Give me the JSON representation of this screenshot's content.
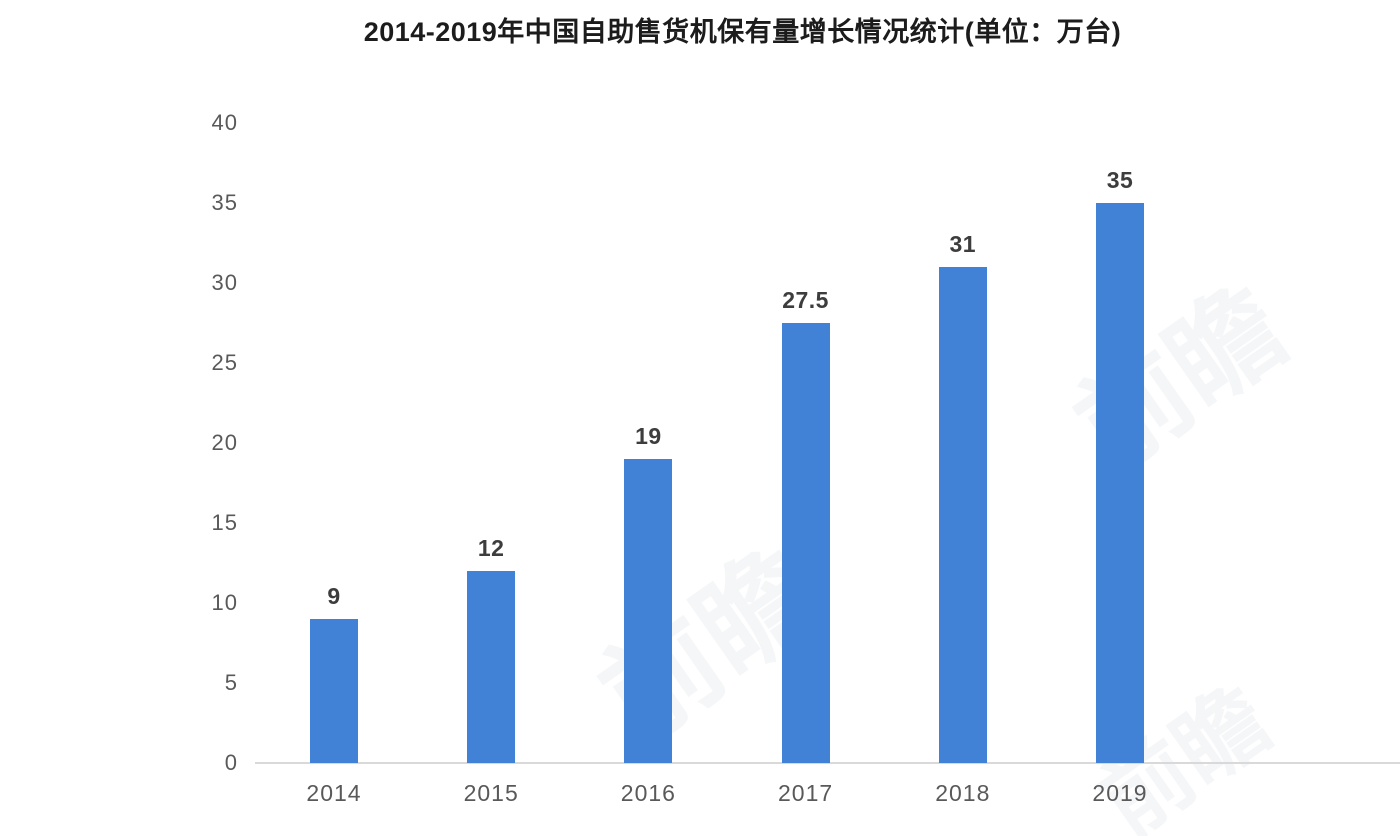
{
  "chart_data": {
    "type": "bar",
    "title": "2014-2019年中国自助售货机保有量增长情况统计(单位：万台)",
    "categories": [
      "2014",
      "2015",
      "2016",
      "2017",
      "2018",
      "2019"
    ],
    "values": [
      9,
      12,
      19,
      27.5,
      31,
      35
    ],
    "value_labels": [
      "9",
      "12",
      "19",
      "27.5",
      "31",
      "35"
    ],
    "xlabel": "",
    "ylabel": "",
    "ylim": [
      0,
      40
    ],
    "yticks": [
      0,
      5,
      10,
      15,
      20,
      25,
      30,
      35,
      40
    ],
    "grid": false,
    "legend": "none",
    "bar_color": "#4182D7",
    "axis_line_color": "#D9D9D9",
    "tick_label_color": "#595959",
    "value_label_color": "#3D3D3D",
    "title_color": "#1C1C1C"
  },
  "watermark": {
    "text": "前瞻",
    "color": "#536B8A"
  }
}
